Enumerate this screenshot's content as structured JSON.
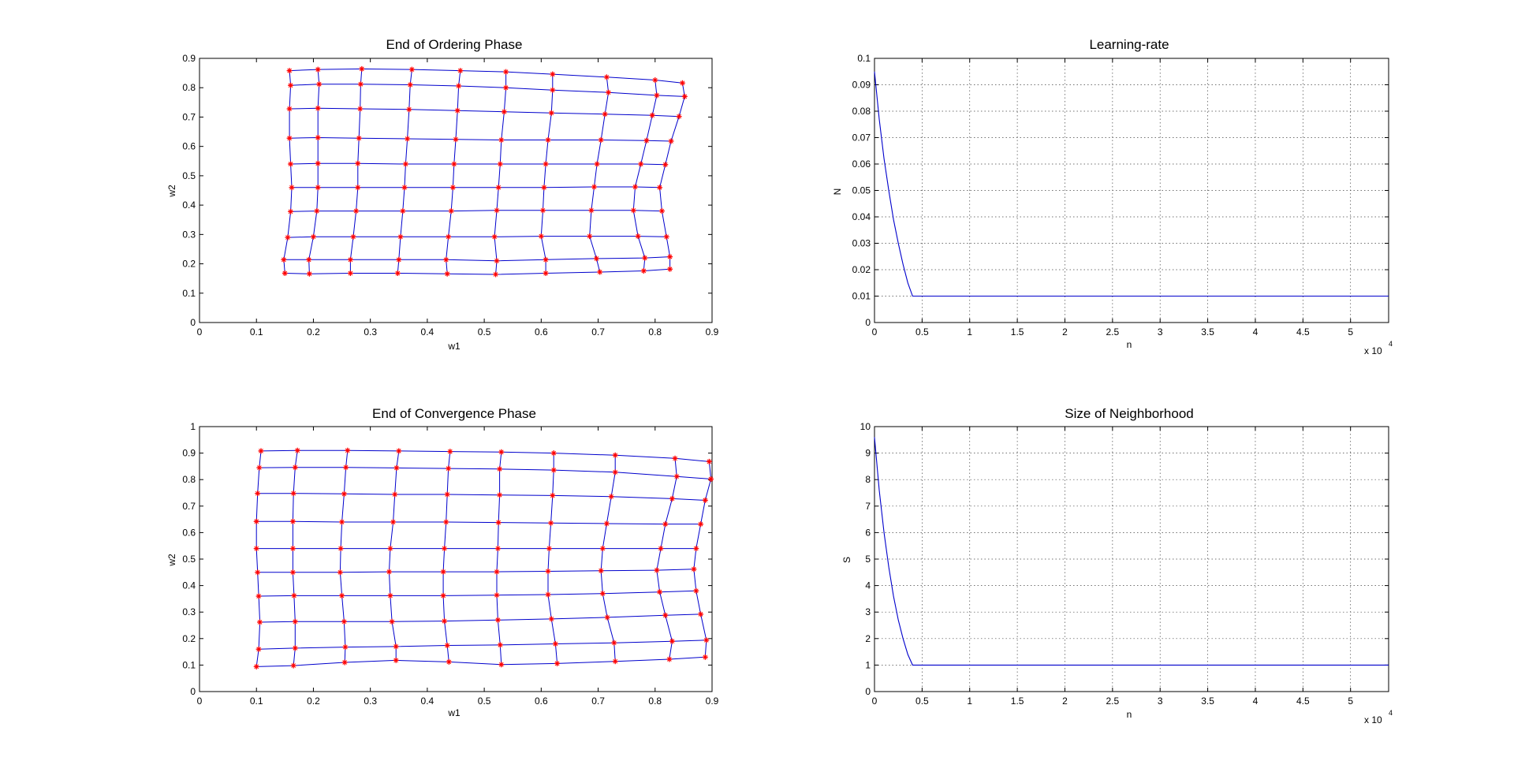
{
  "chart_data": [
    {
      "id": "ordering",
      "type": "scatter",
      "title": "End of Ordering Phase",
      "xlabel": "w1",
      "ylabel": "w2",
      "xlim": [
        0,
        0.9
      ],
      "ylim": [
        0,
        0.9
      ],
      "xticks": [
        0,
        0.1,
        0.2,
        0.3,
        0.4,
        0.5,
        0.6,
        0.7,
        0.8,
        0.9
      ],
      "yticks": [
        0,
        0.1,
        0.2,
        0.3,
        0.4,
        0.5,
        0.6,
        0.7,
        0.8,
        0.9
      ],
      "xtick_labels": [
        "0",
        "0.1",
        "0.2",
        "0.3",
        "0.4",
        "0.5",
        "0.6",
        "0.7",
        "0.8",
        "0.9"
      ],
      "ytick_labels": [
        "0",
        "0.1",
        "0.2",
        "0.3",
        "0.4",
        "0.5",
        "0.6",
        "0.7",
        "0.8",
        "0.9"
      ],
      "grid": false,
      "line_color": "#0000cc",
      "marker_color": "#ff0000",
      "lattice": [
        [
          [
            0.158,
            0.858
          ],
          [
            0.208,
            0.862
          ],
          [
            0.285,
            0.864
          ],
          [
            0.373,
            0.862
          ],
          [
            0.458,
            0.858
          ],
          [
            0.538,
            0.854
          ],
          [
            0.62,
            0.846
          ],
          [
            0.715,
            0.836
          ],
          [
            0.8,
            0.826
          ],
          [
            0.848,
            0.816
          ]
        ],
        [
          [
            0.16,
            0.808
          ],
          [
            0.21,
            0.812
          ],
          [
            0.283,
            0.812
          ],
          [
            0.37,
            0.81
          ],
          [
            0.455,
            0.806
          ],
          [
            0.538,
            0.8
          ],
          [
            0.62,
            0.792
          ],
          [
            0.718,
            0.784
          ],
          [
            0.803,
            0.774
          ],
          [
            0.852,
            0.77
          ]
        ],
        [
          [
            0.158,
            0.728
          ],
          [
            0.208,
            0.73
          ],
          [
            0.282,
            0.728
          ],
          [
            0.368,
            0.726
          ],
          [
            0.453,
            0.722
          ],
          [
            0.535,
            0.718
          ],
          [
            0.618,
            0.714
          ],
          [
            0.712,
            0.71
          ],
          [
            0.795,
            0.706
          ],
          [
            0.842,
            0.702
          ]
        ],
        [
          [
            0.158,
            0.628
          ],
          [
            0.208,
            0.63
          ],
          [
            0.28,
            0.628
          ],
          [
            0.365,
            0.626
          ],
          [
            0.45,
            0.624
          ],
          [
            0.53,
            0.622
          ],
          [
            0.612,
            0.622
          ],
          [
            0.705,
            0.622
          ],
          [
            0.785,
            0.62
          ],
          [
            0.828,
            0.618
          ]
        ],
        [
          [
            0.16,
            0.54
          ],
          [
            0.208,
            0.542
          ],
          [
            0.278,
            0.542
          ],
          [
            0.362,
            0.54
          ],
          [
            0.447,
            0.54
          ],
          [
            0.528,
            0.54
          ],
          [
            0.608,
            0.54
          ],
          [
            0.698,
            0.54
          ],
          [
            0.775,
            0.54
          ],
          [
            0.818,
            0.538
          ]
        ],
        [
          [
            0.162,
            0.46
          ],
          [
            0.208,
            0.46
          ],
          [
            0.278,
            0.46
          ],
          [
            0.36,
            0.46
          ],
          [
            0.445,
            0.46
          ],
          [
            0.525,
            0.46
          ],
          [
            0.605,
            0.46
          ],
          [
            0.693,
            0.462
          ],
          [
            0.765,
            0.462
          ],
          [
            0.808,
            0.46
          ]
        ],
        [
          [
            0.16,
            0.378
          ],
          [
            0.206,
            0.38
          ],
          [
            0.275,
            0.38
          ],
          [
            0.357,
            0.38
          ],
          [
            0.442,
            0.38
          ],
          [
            0.522,
            0.382
          ],
          [
            0.603,
            0.382
          ],
          [
            0.688,
            0.382
          ],
          [
            0.762,
            0.382
          ],
          [
            0.812,
            0.38
          ]
        ],
        [
          [
            0.155,
            0.29
          ],
          [
            0.2,
            0.292
          ],
          [
            0.27,
            0.292
          ],
          [
            0.353,
            0.292
          ],
          [
            0.437,
            0.292
          ],
          [
            0.518,
            0.292
          ],
          [
            0.6,
            0.294
          ],
          [
            0.685,
            0.294
          ],
          [
            0.77,
            0.294
          ],
          [
            0.82,
            0.292
          ]
        ],
        [
          [
            0.148,
            0.214
          ],
          [
            0.192,
            0.214
          ],
          [
            0.265,
            0.214
          ],
          [
            0.35,
            0.214
          ],
          [
            0.433,
            0.214
          ],
          [
            0.522,
            0.21
          ],
          [
            0.608,
            0.214
          ],
          [
            0.697,
            0.218
          ],
          [
            0.782,
            0.22
          ],
          [
            0.826,
            0.224
          ]
        ],
        [
          [
            0.15,
            0.168
          ],
          [
            0.193,
            0.166
          ],
          [
            0.265,
            0.168
          ],
          [
            0.348,
            0.168
          ],
          [
            0.435,
            0.166
          ],
          [
            0.52,
            0.164
          ],
          [
            0.608,
            0.168
          ],
          [
            0.703,
            0.172
          ],
          [
            0.78,
            0.176
          ],
          [
            0.826,
            0.182
          ]
        ]
      ]
    },
    {
      "id": "learning",
      "type": "line",
      "title": "Learning-rate",
      "xlabel": "n",
      "ylabel": "N",
      "exponent_label": "x 10",
      "exponent_power": "4",
      "xlim": [
        0,
        5.4
      ],
      "ylim": [
        0,
        0.1
      ],
      "x_units": "×10^4 iterations",
      "xticks": [
        0,
        0.5,
        1,
        1.5,
        2,
        2.5,
        3,
        3.5,
        4,
        4.5,
        5
      ],
      "yticks": [
        0,
        0.01,
        0.02,
        0.03,
        0.04,
        0.05,
        0.06,
        0.07,
        0.08,
        0.09,
        0.1
      ],
      "xtick_labels": [
        "0",
        "0.5",
        "1",
        "1.5",
        "2",
        "2.5",
        "3",
        "3.5",
        "4",
        "4.5",
        "5"
      ],
      "ytick_labels": [
        "0",
        "0.01",
        "0.02",
        "0.03",
        "0.04",
        "0.05",
        "0.06",
        "0.07",
        "0.08",
        "0.09",
        "0.1"
      ],
      "grid": true,
      "line_color": "#0000cc",
      "points": [
        [
          0,
          0.095
        ],
        [
          0.05,
          0.077
        ],
        [
          0.1,
          0.062
        ],
        [
          0.15,
          0.05
        ],
        [
          0.2,
          0.039
        ],
        [
          0.25,
          0.03
        ],
        [
          0.3,
          0.022
        ],
        [
          0.35,
          0.015
        ],
        [
          0.4,
          0.01
        ],
        [
          5.4,
          0.01
        ]
      ]
    },
    {
      "id": "convergence",
      "type": "scatter",
      "title": "End of Convergence Phase",
      "xlabel": "w1",
      "ylabel": "w2",
      "xlim": [
        0,
        0.9
      ],
      "ylim": [
        0,
        1
      ],
      "xticks": [
        0,
        0.1,
        0.2,
        0.3,
        0.4,
        0.5,
        0.6,
        0.7,
        0.8,
        0.9
      ],
      "yticks": [
        0,
        0.1,
        0.2,
        0.3,
        0.4,
        0.5,
        0.6,
        0.7,
        0.8,
        0.9,
        1
      ],
      "xtick_labels": [
        "0",
        "0.1",
        "0.2",
        "0.3",
        "0.4",
        "0.5",
        "0.6",
        "0.7",
        "0.8",
        "0.9"
      ],
      "ytick_labels": [
        "0",
        "0.1",
        "0.2",
        "0.3",
        "0.4",
        "0.5",
        "0.6",
        "0.7",
        "0.8",
        "0.9",
        "1"
      ],
      "grid": false,
      "line_color": "#0000cc",
      "marker_color": "#ff0000",
      "lattice": [
        [
          [
            0.108,
            0.908
          ],
          [
            0.172,
            0.91
          ],
          [
            0.26,
            0.91
          ],
          [
            0.35,
            0.908
          ],
          [
            0.44,
            0.906
          ],
          [
            0.53,
            0.904
          ],
          [
            0.622,
            0.9
          ],
          [
            0.73,
            0.892
          ],
          [
            0.835,
            0.88
          ],
          [
            0.895,
            0.868
          ]
        ],
        [
          [
            0.105,
            0.845
          ],
          [
            0.168,
            0.846
          ],
          [
            0.257,
            0.846
          ],
          [
            0.346,
            0.844
          ],
          [
            0.437,
            0.842
          ],
          [
            0.527,
            0.84
          ],
          [
            0.622,
            0.836
          ],
          [
            0.73,
            0.828
          ],
          [
            0.838,
            0.812
          ],
          [
            0.898,
            0.802
          ]
        ],
        [
          [
            0.102,
            0.748
          ],
          [
            0.165,
            0.748
          ],
          [
            0.254,
            0.746
          ],
          [
            0.343,
            0.744
          ],
          [
            0.435,
            0.744
          ],
          [
            0.527,
            0.742
          ],
          [
            0.62,
            0.74
          ],
          [
            0.723,
            0.736
          ],
          [
            0.83,
            0.728
          ],
          [
            0.888,
            0.722
          ]
        ],
        [
          [
            0.1,
            0.642
          ],
          [
            0.164,
            0.642
          ],
          [
            0.25,
            0.64
          ],
          [
            0.34,
            0.64
          ],
          [
            0.433,
            0.64
          ],
          [
            0.525,
            0.638
          ],
          [
            0.617,
            0.636
          ],
          [
            0.715,
            0.634
          ],
          [
            0.818,
            0.632
          ],
          [
            0.88,
            0.632
          ]
        ],
        [
          [
            0.1,
            0.54
          ],
          [
            0.164,
            0.54
          ],
          [
            0.248,
            0.54
          ],
          [
            0.335,
            0.54
          ],
          [
            0.43,
            0.54
          ],
          [
            0.524,
            0.54
          ],
          [
            0.614,
            0.54
          ],
          [
            0.708,
            0.54
          ],
          [
            0.81,
            0.54
          ],
          [
            0.872,
            0.54
          ]
        ],
        [
          [
            0.102,
            0.45
          ],
          [
            0.164,
            0.45
          ],
          [
            0.247,
            0.45
          ],
          [
            0.333,
            0.452
          ],
          [
            0.428,
            0.452
          ],
          [
            0.522,
            0.452
          ],
          [
            0.612,
            0.454
          ],
          [
            0.705,
            0.456
          ],
          [
            0.803,
            0.458
          ],
          [
            0.868,
            0.462
          ]
        ],
        [
          [
            0.104,
            0.36
          ],
          [
            0.166,
            0.362
          ],
          [
            0.25,
            0.362
          ],
          [
            0.335,
            0.362
          ],
          [
            0.428,
            0.362
          ],
          [
            0.522,
            0.364
          ],
          [
            0.612,
            0.366
          ],
          [
            0.708,
            0.37
          ],
          [
            0.808,
            0.376
          ],
          [
            0.872,
            0.38
          ]
        ],
        [
          [
            0.106,
            0.262
          ],
          [
            0.168,
            0.264
          ],
          [
            0.254,
            0.264
          ],
          [
            0.338,
            0.264
          ],
          [
            0.43,
            0.266
          ],
          [
            0.524,
            0.27
          ],
          [
            0.618,
            0.274
          ],
          [
            0.716,
            0.28
          ],
          [
            0.818,
            0.288
          ],
          [
            0.88,
            0.292
          ]
        ],
        [
          [
            0.104,
            0.16
          ],
          [
            0.168,
            0.164
          ],
          [
            0.256,
            0.168
          ],
          [
            0.345,
            0.17
          ],
          [
            0.435,
            0.174
          ],
          [
            0.528,
            0.176
          ],
          [
            0.625,
            0.18
          ],
          [
            0.728,
            0.184
          ],
          [
            0.83,
            0.19
          ],
          [
            0.89,
            0.194
          ]
        ],
        [
          [
            0.1,
            0.094
          ],
          [
            0.165,
            0.098
          ],
          [
            0.255,
            0.11
          ],
          [
            0.345,
            0.118
          ],
          [
            0.438,
            0.112
          ],
          [
            0.53,
            0.102
          ],
          [
            0.628,
            0.106
          ],
          [
            0.73,
            0.114
          ],
          [
            0.825,
            0.122
          ],
          [
            0.888,
            0.13
          ]
        ]
      ]
    },
    {
      "id": "neighborhood",
      "type": "line",
      "title": "Size of Neighborhood",
      "xlabel": "n",
      "ylabel": "S",
      "exponent_label": "x 10",
      "exponent_power": "4",
      "xlim": [
        0,
        5.4
      ],
      "ylim": [
        0,
        10
      ],
      "x_units": "×10^4 iterations",
      "xticks": [
        0,
        0.5,
        1,
        1.5,
        2,
        2.5,
        3,
        3.5,
        4,
        4.5,
        5
      ],
      "yticks": [
        0,
        1,
        2,
        3,
        4,
        5,
        6,
        7,
        8,
        9,
        10
      ],
      "xtick_labels": [
        "0",
        "0.5",
        "1",
        "1.5",
        "2",
        "2.5",
        "3",
        "3.5",
        "4",
        "4.5",
        "5"
      ],
      "ytick_labels": [
        "0",
        "1",
        "2",
        "3",
        "4",
        "5",
        "6",
        "7",
        "8",
        "9",
        "10"
      ],
      "grid": true,
      "line_color": "#0000cc",
      "points": [
        [
          0,
          9.6
        ],
        [
          0.05,
          7.6
        ],
        [
          0.1,
          6.0
        ],
        [
          0.15,
          4.7
        ],
        [
          0.2,
          3.6
        ],
        [
          0.25,
          2.7
        ],
        [
          0.3,
          2.0
        ],
        [
          0.35,
          1.4
        ],
        [
          0.4,
          1.0
        ],
        [
          5.4,
          1.0
        ]
      ]
    }
  ]
}
